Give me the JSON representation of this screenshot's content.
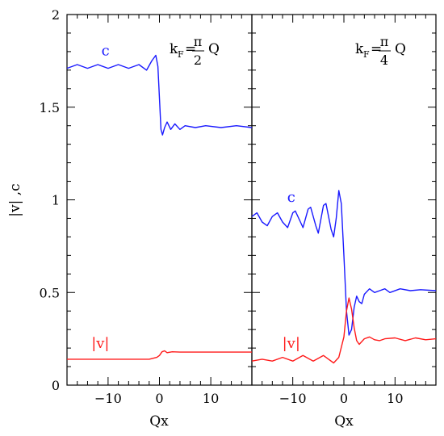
{
  "chart_data": [
    {
      "type": "line",
      "panel": "left",
      "annotation": {
        "prefix": "k",
        "sub": "F",
        "eq": "=",
        "num": "π",
        "den": "2",
        "suffix": "Q"
      },
      "xlabel": "Qx",
      "ylabel": "|v| ,c",
      "xlim": [
        -18,
        18
      ],
      "ylim": [
        0,
        2
      ],
      "x_ticks": [
        -10,
        0,
        10
      ],
      "x_tick_labels": [
        "−10",
        "0",
        "10"
      ],
      "y_ticks": [
        0,
        0.5,
        1,
        1.5,
        2
      ],
      "y_tick_labels": [
        "0",
        "0.5",
        "1",
        "1.5",
        "2"
      ],
      "series": [
        {
          "name": "c",
          "color": "#1a1aff",
          "points": [
            [
              -18,
              1.71
            ],
            [
              -16,
              1.73
            ],
            [
              -14,
              1.71
            ],
            [
              -12,
              1.73
            ],
            [
              -10,
              1.71
            ],
            [
              -8,
              1.73
            ],
            [
              -6,
              1.71
            ],
            [
              -4,
              1.73
            ],
            [
              -2.5,
              1.7
            ],
            [
              -1.5,
              1.75
            ],
            [
              -0.7,
              1.78
            ],
            [
              -0.3,
              1.72
            ],
            [
              0,
              1.55
            ],
            [
              0.3,
              1.38
            ],
            [
              0.6,
              1.35
            ],
            [
              1.0,
              1.39
            ],
            [
              1.5,
              1.42
            ],
            [
              2.2,
              1.38
            ],
            [
              3,
              1.41
            ],
            [
              4,
              1.38
            ],
            [
              5,
              1.4
            ],
            [
              7,
              1.39
            ],
            [
              9,
              1.4
            ],
            [
              12,
              1.39
            ],
            [
              15,
              1.4
            ],
            [
              18,
              1.39
            ]
          ],
          "label_pos": [
            -10.5,
            1.78
          ]
        },
        {
          "name": "|v|",
          "color": "#ff1a1a",
          "points": [
            [
              -18,
              0.14
            ],
            [
              -10,
              0.14
            ],
            [
              -2,
              0.14
            ],
            [
              -0.5,
              0.15
            ],
            [
              0,
              0.16
            ],
            [
              0.5,
              0.18
            ],
            [
              1,
              0.185
            ],
            [
              1.5,
              0.175
            ],
            [
              2.5,
              0.18
            ],
            [
              4,
              0.178
            ],
            [
              8,
              0.178
            ],
            [
              18,
              0.178
            ]
          ],
          "label_pos": [
            -11.5,
            0.2
          ]
        }
      ]
    },
    {
      "type": "line",
      "panel": "right",
      "annotation": {
        "prefix": "k",
        "sub": "F",
        "eq": "=",
        "num": "π",
        "den": "4",
        "suffix": "Q"
      },
      "xlabel": "Qx",
      "ylabel": "",
      "xlim": [
        -18,
        18
      ],
      "ylim": [
        0,
        2
      ],
      "x_ticks": [
        -10,
        0,
        10
      ],
      "x_tick_labels": [
        "−10",
        "0",
        "10"
      ],
      "series": [
        {
          "name": "c",
          "color": "#1a1aff",
          "points": [
            [
              -18,
              0.91
            ],
            [
              -17,
              0.93
            ],
            [
              -16,
              0.88
            ],
            [
              -15,
              0.86
            ],
            [
              -14,
              0.91
            ],
            [
              -13,
              0.93
            ],
            [
              -12,
              0.88
            ],
            [
              -11,
              0.85
            ],
            [
              -10,
              0.93
            ],
            [
              -9.5,
              0.94
            ],
            [
              -8.5,
              0.88
            ],
            [
              -8,
              0.85
            ],
            [
              -7,
              0.95
            ],
            [
              -6.5,
              0.96
            ],
            [
              -5.5,
              0.86
            ],
            [
              -5,
              0.82
            ],
            [
              -4,
              0.97
            ],
            [
              -3.5,
              0.98
            ],
            [
              -2.5,
              0.84
            ],
            [
              -2,
              0.8
            ],
            [
              -1.5,
              0.9
            ],
            [
              -1,
              1.05
            ],
            [
              -0.5,
              0.98
            ],
            [
              0,
              0.7
            ],
            [
              0.5,
              0.4
            ],
            [
              1,
              0.27
            ],
            [
              1.5,
              0.3
            ],
            [
              2,
              0.42
            ],
            [
              2.5,
              0.48
            ],
            [
              3,
              0.45
            ],
            [
              3.5,
              0.44
            ],
            [
              4,
              0.49
            ],
            [
              5,
              0.52
            ],
            [
              6,
              0.5
            ],
            [
              7,
              0.51
            ],
            [
              8,
              0.52
            ],
            [
              9,
              0.5
            ],
            [
              11,
              0.52
            ],
            [
              13,
              0.51
            ],
            [
              15,
              0.515
            ],
            [
              18,
              0.51
            ]
          ],
          "label_pos": [
            -10.3,
            0.99
          ]
        },
        {
          "name": "|v|",
          "color": "#ff1a1a",
          "points": [
            [
              -18,
              0.13
            ],
            [
              -16,
              0.14
            ],
            [
              -14,
              0.13
            ],
            [
              -12,
              0.15
            ],
            [
              -10,
              0.13
            ],
            [
              -8,
              0.16
            ],
            [
              -6,
              0.13
            ],
            [
              -4,
              0.16
            ],
            [
              -3,
              0.14
            ],
            [
              -2,
              0.12
            ],
            [
              -1,
              0.15
            ],
            [
              0,
              0.26
            ],
            [
              0.5,
              0.4
            ],
            [
              1,
              0.47
            ],
            [
              1.5,
              0.41
            ],
            [
              2,
              0.31
            ],
            [
              2.5,
              0.24
            ],
            [
              3,
              0.22
            ],
            [
              4,
              0.25
            ],
            [
              5,
              0.26
            ],
            [
              6,
              0.245
            ],
            [
              7,
              0.24
            ],
            [
              8,
              0.25
            ],
            [
              10,
              0.255
            ],
            [
              12,
              0.24
            ],
            [
              14,
              0.255
            ],
            [
              16,
              0.245
            ],
            [
              18,
              0.25
            ]
          ],
          "label_pos": [
            -10.3,
            0.2
          ]
        }
      ]
    }
  ]
}
